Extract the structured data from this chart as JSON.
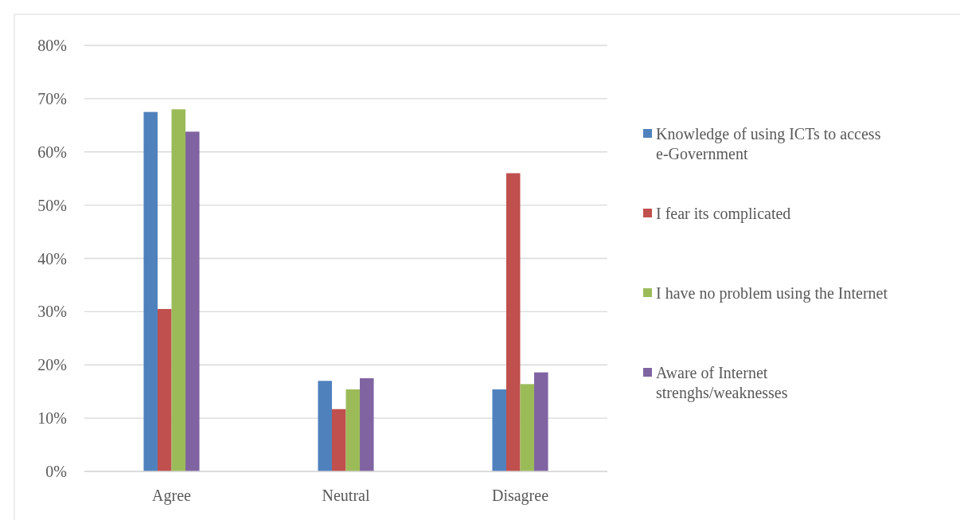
{
  "chart_data": {
    "type": "bar",
    "categories": [
      "Agree",
      "Neutral",
      "Disagree"
    ],
    "series": [
      {
        "name": "Knowledge of using ICTs to access e-Government",
        "color": "#4f81bd",
        "values": [
          67.5,
          17.0,
          15.4
        ]
      },
      {
        "name": "I fear its complicated",
        "color": "#c0504d",
        "values": [
          30.5,
          11.7,
          56
        ]
      },
      {
        "name": "I have no problem using the Internet",
        "color": "#9bbb59",
        "values": [
          68.0,
          15.4,
          16.4
        ]
      },
      {
        "name": "Aware of Internet strenghs/weaknesses",
        "color": "#8064a2",
        "values": [
          63.8,
          17.5,
          18.6
        ]
      }
    ],
    "ylim": [
      0,
      80
    ],
    "yticks": [
      {
        "value": 0,
        "label": "0%"
      },
      {
        "value": 10,
        "label": "10%"
      },
      {
        "value": 20,
        "label": "20%"
      },
      {
        "value": 30,
        "label": "30%"
      },
      {
        "value": 40,
        "label": "40%"
      },
      {
        "value": 50,
        "label": "50%"
      },
      {
        "value": 60,
        "label": "60%"
      },
      {
        "value": 70,
        "label": "70%"
      },
      {
        "value": 80,
        "label": "80%"
      }
    ],
    "grid": "y",
    "legend": "right"
  }
}
